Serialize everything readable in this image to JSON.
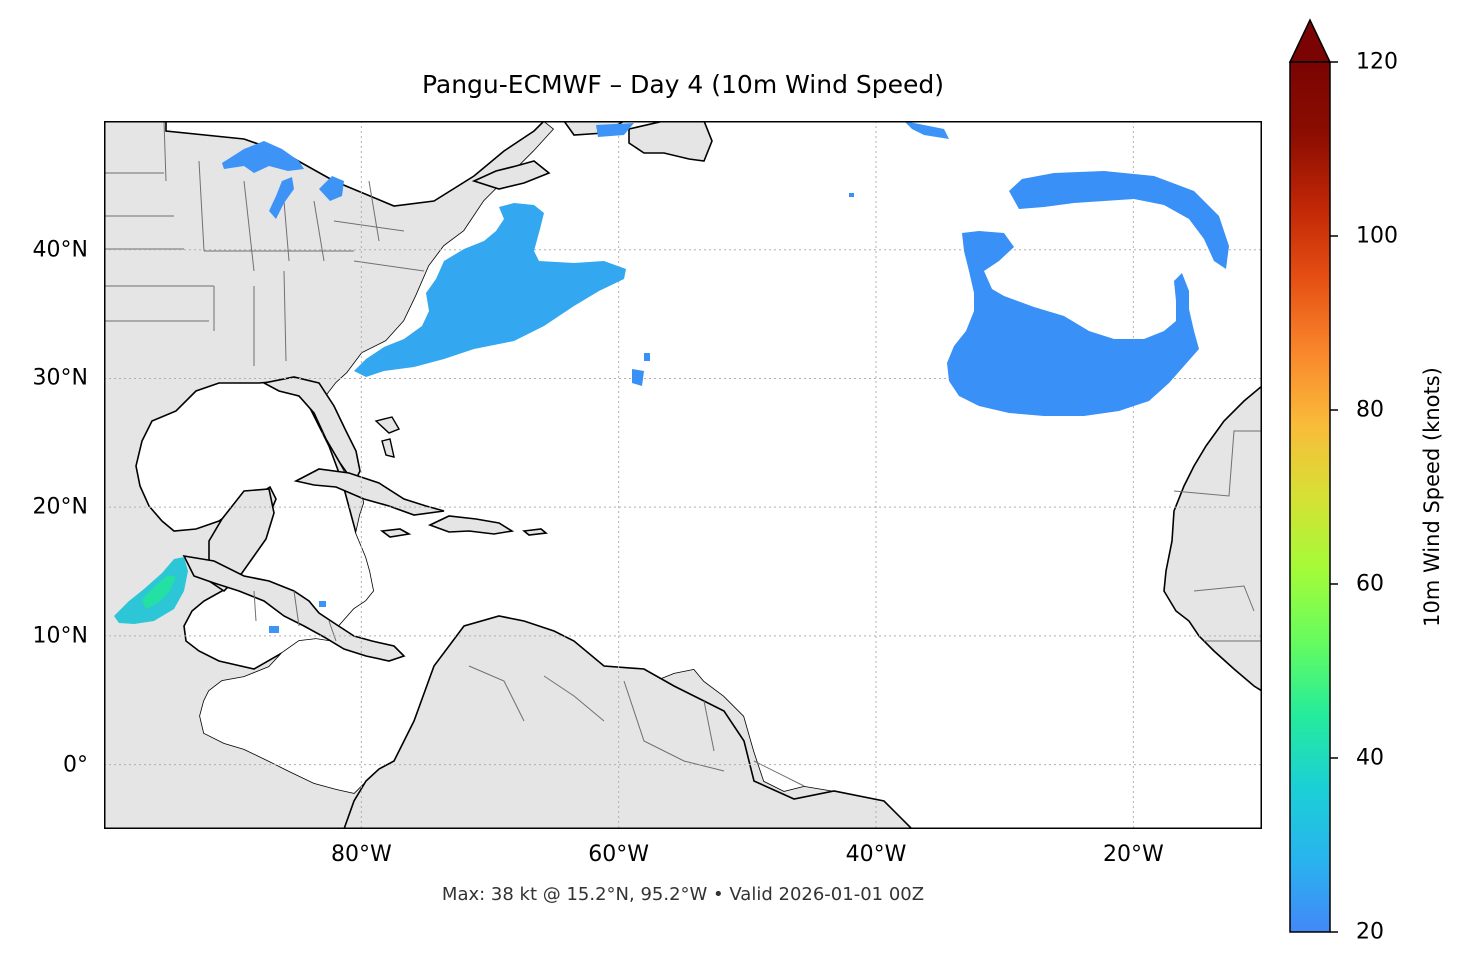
{
  "title": "Pangu-ECMWF – Day 4 (10m Wind Speed)",
  "footer": "Max: 38 kt @ 15.2°N, 95.2°W • Valid 2026-01-01 00Z",
  "map": {
    "extent": {
      "lon": [
        -100,
        -10
      ],
      "lat": [
        -5,
        50
      ]
    },
    "lon_ticks": [
      {
        "value": -80,
        "label": "80°W"
      },
      {
        "value": -60,
        "label": "60°W"
      },
      {
        "value": -40,
        "label": "40°W"
      },
      {
        "value": -20,
        "label": "20°W"
      }
    ],
    "lat_ticks": [
      {
        "value": 40,
        "label": "40°N"
      },
      {
        "value": 30,
        "label": "30°N"
      },
      {
        "value": 20,
        "label": "20°N"
      },
      {
        "value": 10,
        "label": "10°N"
      },
      {
        "value": 0,
        "label": "0°"
      }
    ],
    "land_color": "#e5e5e5",
    "ocean_color": "#ffffff",
    "gridlines": true
  },
  "colorbar": {
    "label": "10m Wind Speed (knots)",
    "min": 20,
    "max": 120,
    "ticks": [
      {
        "value": 120,
        "label": "120"
      },
      {
        "value": 100,
        "label": "100"
      },
      {
        "value": 80,
        "label": "80"
      },
      {
        "value": 60,
        "label": "60"
      },
      {
        "value": 40,
        "label": "40"
      },
      {
        "value": 20,
        "label": "20"
      }
    ],
    "extend": "max",
    "colormap": "turbo",
    "colors": [
      "#4288f8",
      "#29b4ee",
      "#1bd0d5",
      "#25ec9b",
      "#66fc5f",
      "#a4fb38",
      "#d6e135",
      "#f9bb39",
      "#f9872c",
      "#e65013",
      "#c02706",
      "#8c0d01",
      "#7a0403"
    ]
  },
  "wind_regions": [
    {
      "name": "Great Lakes",
      "speed_kt": 24
    },
    {
      "name": "US East Coast",
      "speed_kt": 26
    },
    {
      "name": "Northeast Atlantic",
      "speed_kt": 22
    },
    {
      "name": "Gulf of Tehuantepec",
      "speed_kt": 38
    }
  ]
}
